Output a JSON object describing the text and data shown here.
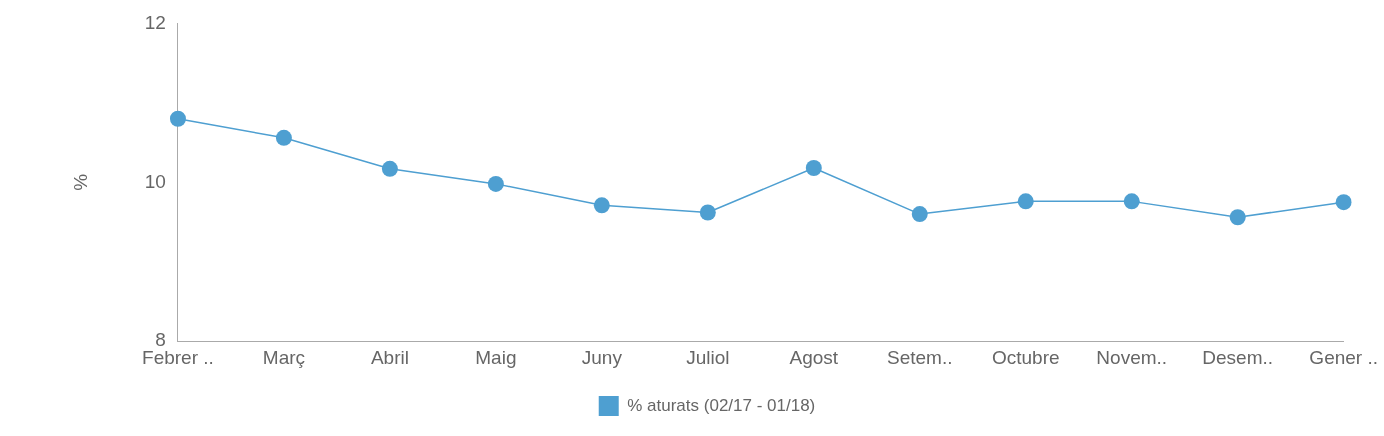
{
  "chart_data": {
    "type": "line",
    "ylabel": "%",
    "categories": [
      "Febrer ..",
      "Març",
      "Abril",
      "Maig",
      "Juny",
      "Juliol",
      "Agost",
      "Setem..",
      "Octubre",
      "Novem..",
      "Desem..",
      "Gener .."
    ],
    "series": [
      {
        "name": "% aturats (02/17 - 01/18)",
        "color": "#4e9fd1",
        "values": [
          10.8,
          10.56,
          10.17,
          9.98,
          9.71,
          9.62,
          10.18,
          9.6,
          9.76,
          9.76,
          9.56,
          9.75
        ]
      }
    ],
    "ylim": [
      8,
      12
    ],
    "yticks": [
      8,
      10,
      12
    ],
    "grid": false,
    "legend": "bottom",
    "marker": "circle",
    "line_style": "solid"
  }
}
